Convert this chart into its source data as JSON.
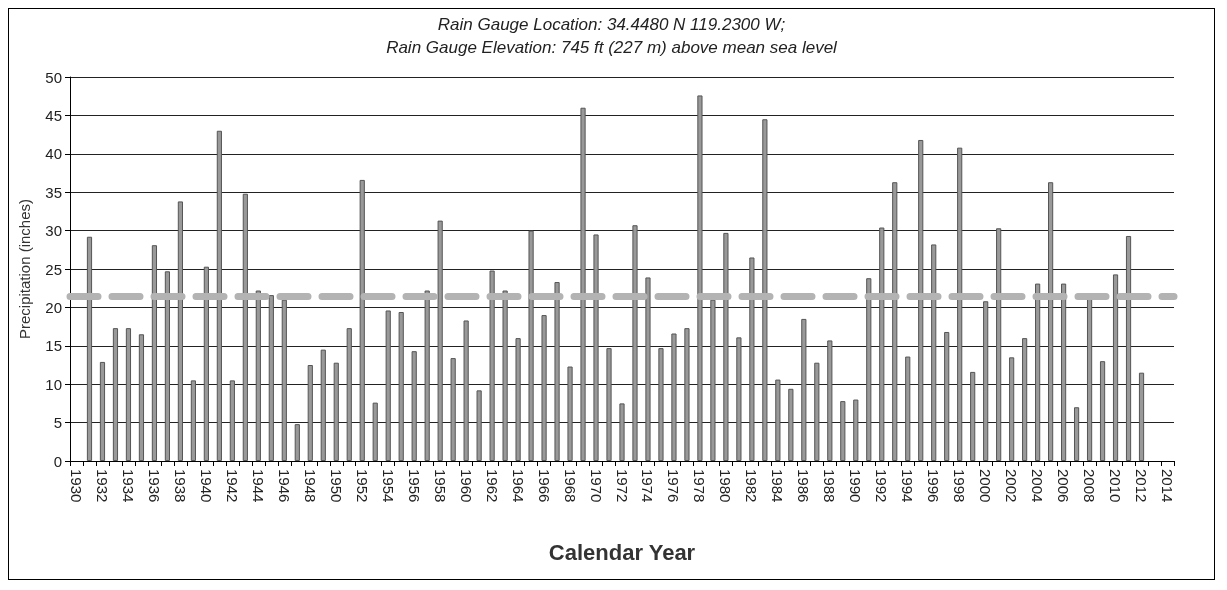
{
  "chart_data": {
    "type": "bar",
    "title": "Rain Gauge Location: 34.4480 N 119.2300 W;",
    "subtitle": "Rain Gauge Elevation: 745 ft (227 m) above mean sea level",
    "xlabel": "Calendar Year",
    "ylabel": "Precipitation (inches)",
    "categories": [
      "1930",
      null,
      "1932",
      null,
      "1934",
      null,
      "1936",
      null,
      "1938",
      null,
      "1940",
      null,
      "1942",
      null,
      "1944",
      null,
      "1946",
      null,
      "1948",
      null,
      "1950",
      null,
      "1952",
      null,
      "1954",
      null,
      "1956",
      null,
      "1958",
      null,
      "1960",
      null,
      "1962",
      null,
      "1964",
      null,
      "1966",
      null,
      "1968",
      null,
      "1970",
      null,
      "1972",
      null,
      "1974",
      null,
      "1976",
      null,
      "1978",
      null,
      "1980",
      null,
      "1982",
      null,
      "1984",
      null,
      "1986",
      null,
      "1988",
      null,
      "1990",
      null,
      "1992",
      null,
      "1994",
      null,
      "1996",
      null,
      "1998",
      null,
      "2000",
      null,
      "2002",
      null,
      "2004",
      null,
      "2006",
      null,
      "2008",
      null,
      "2010",
      null,
      "2012",
      null,
      "2014"
    ],
    "values": [
      null,
      29.2,
      12.9,
      17.3,
      17.3,
      16.5,
      28.1,
      24.7,
      33.8,
      10.5,
      25.3,
      43.0,
      10.5,
      34.8,
      22.2,
      21.6,
      21.0,
      4.8,
      12.5,
      14.5,
      12.8,
      17.3,
      36.6,
      7.6,
      19.6,
      19.4,
      14.3,
      22.2,
      31.3,
      13.4,
      18.3,
      9.2,
      24.8,
      22.2,
      16.0,
      30.0,
      19.0,
      23.3,
      12.3,
      46.0,
      29.5,
      14.7,
      7.5,
      30.7,
      23.9,
      14.7,
      16.6,
      17.3,
      47.6,
      21.0,
      29.7,
      16.1,
      26.5,
      44.5,
      10.6,
      9.4,
      18.5,
      12.8,
      15.7,
      7.8,
      8.0,
      23.8,
      30.4,
      36.3,
      13.6,
      41.8,
      28.2,
      16.8,
      40.8,
      11.6,
      20.8,
      30.3,
      13.5,
      16.0,
      23.1,
      36.3,
      23.1,
      7.0,
      21.3,
      13.0,
      24.3,
      29.3,
      11.5,
      null,
      null
    ],
    "color": "#999999",
    "ylim": [
      0,
      50
    ],
    "yticks": [
      0,
      5,
      10,
      15,
      20,
      25,
      30,
      35,
      40,
      45,
      50
    ],
    "grid": "y",
    "ref_lines": [
      {
        "axis": "y",
        "value": 21.5,
        "color": "#b3b3b3",
        "line_style": "dashed"
      }
    ]
  }
}
